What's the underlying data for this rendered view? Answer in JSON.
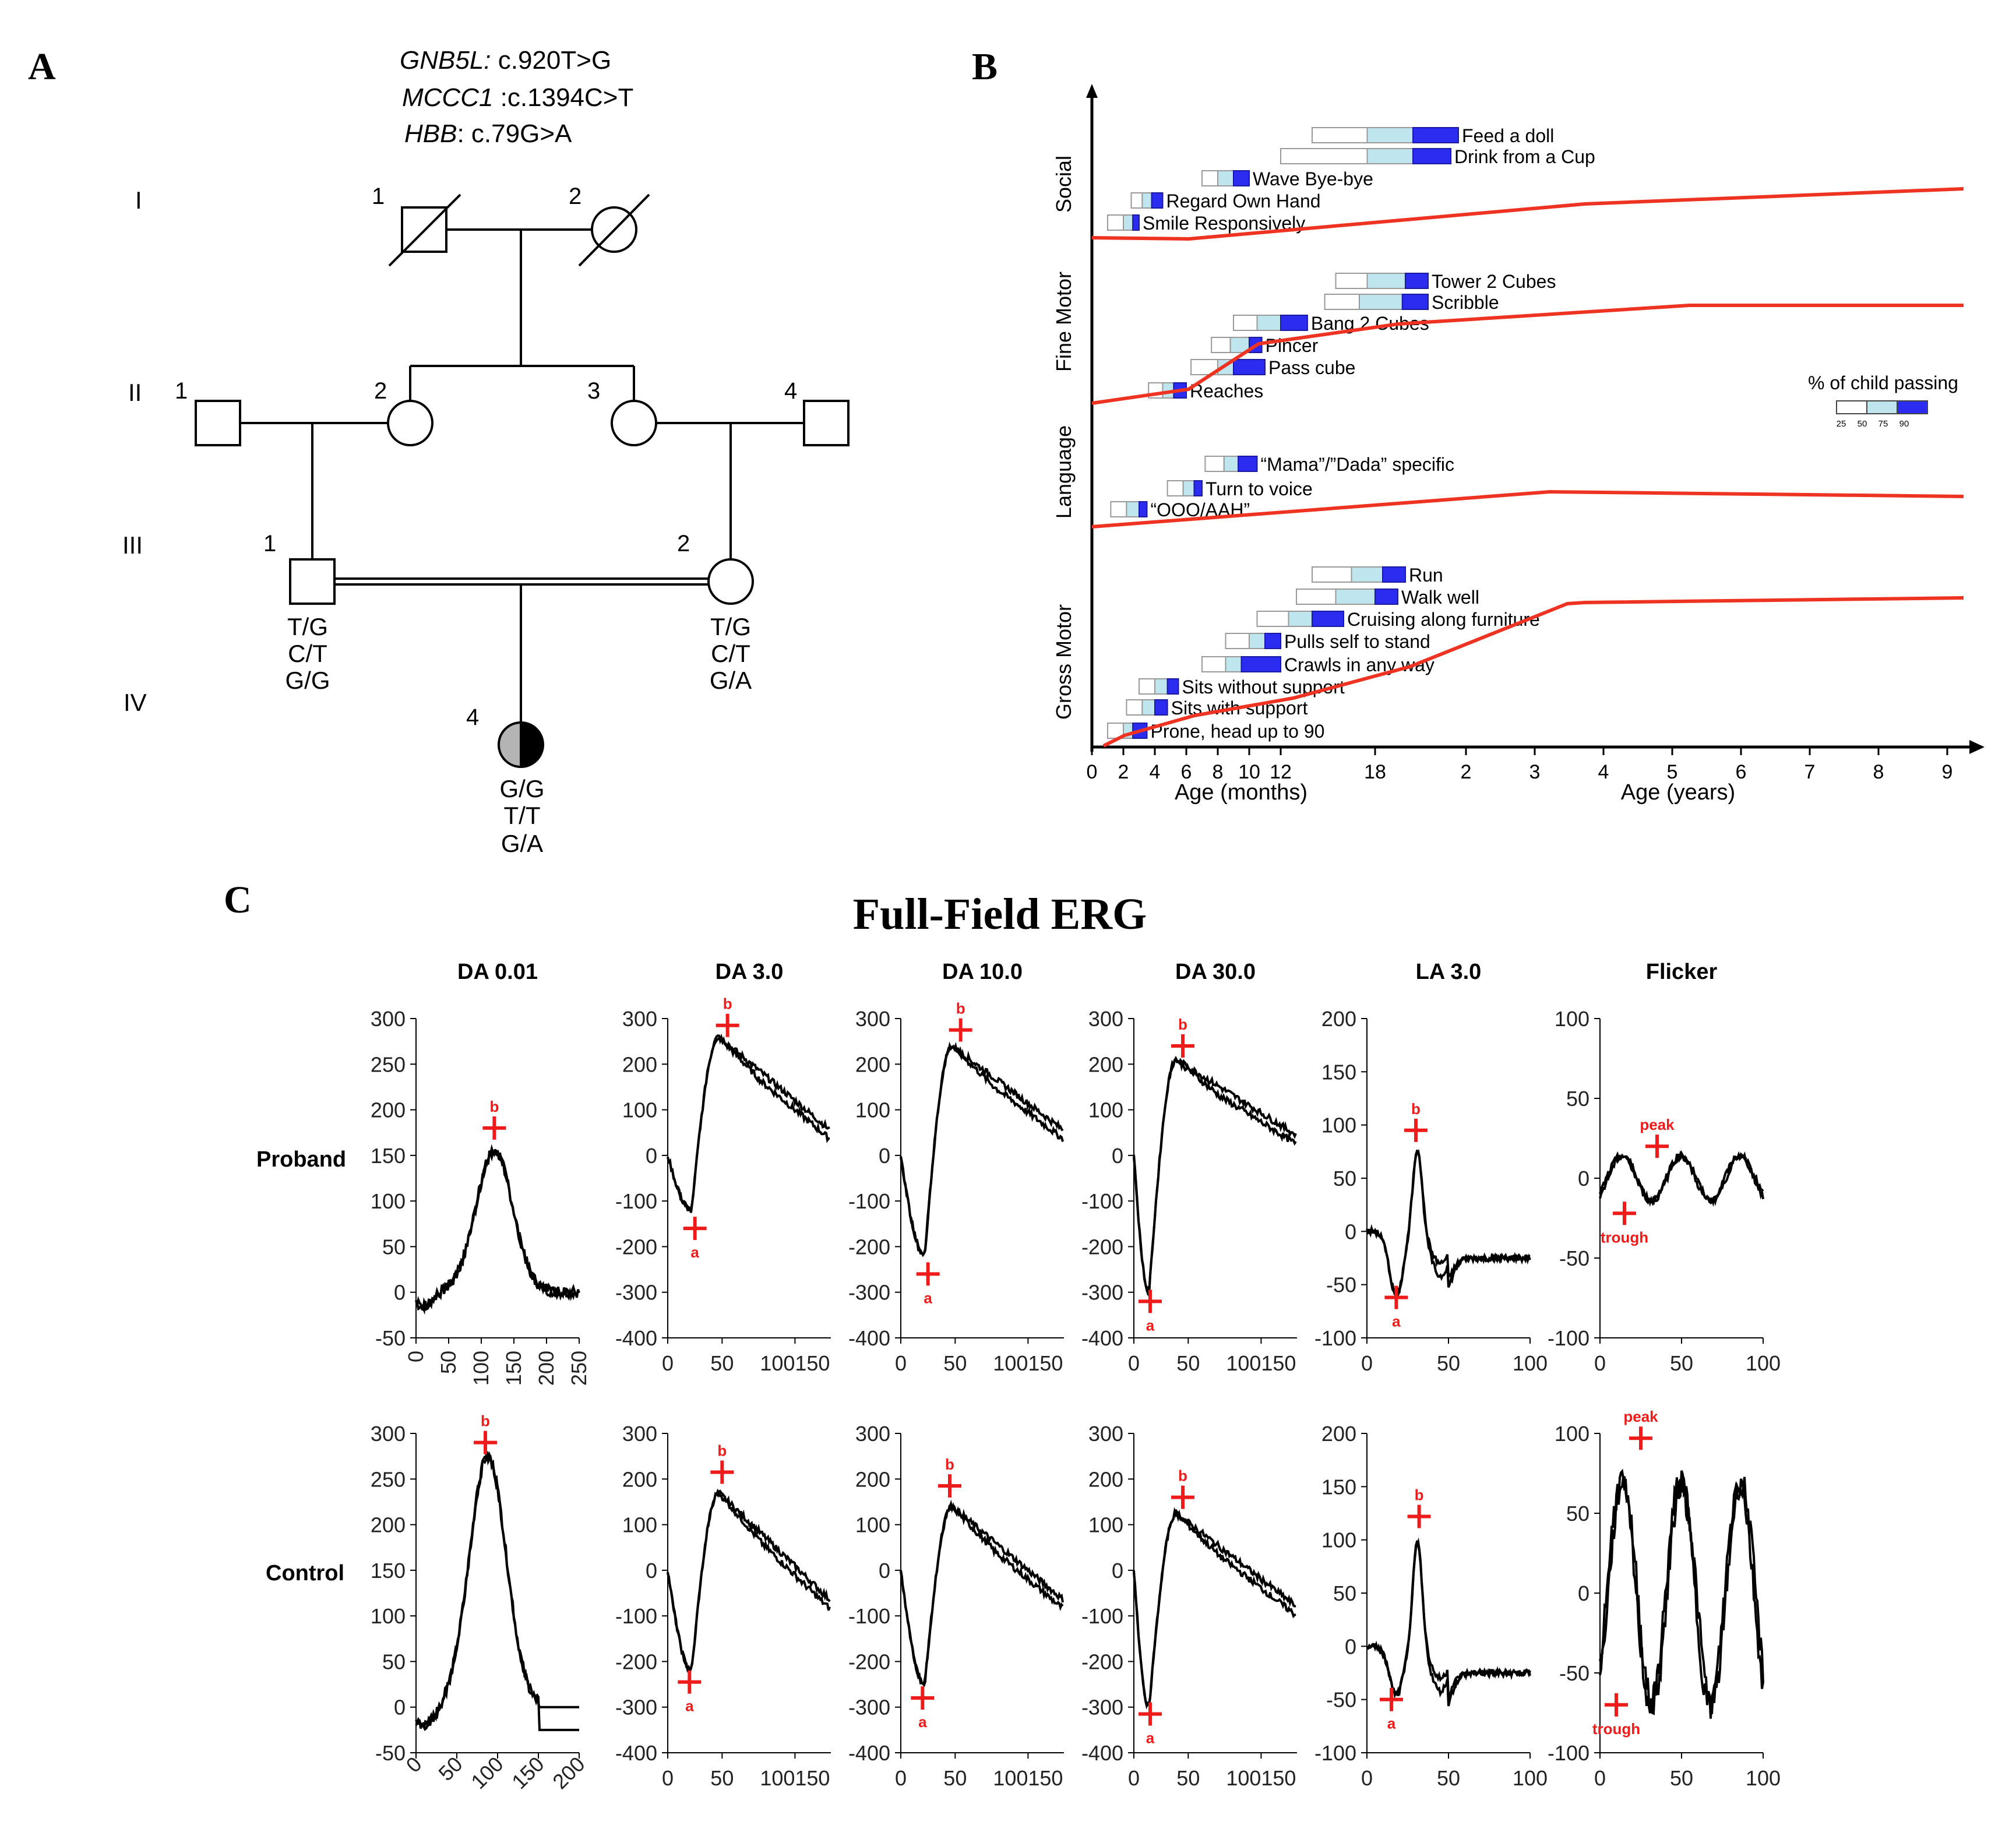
{
  "panel_labels": {
    "a": "A",
    "b": "B",
    "c": "C"
  },
  "pedigree": {
    "variants": [
      {
        "gene": "GNB5L:",
        "change": " c.920T>G"
      },
      {
        "gene": "MCCC1",
        "change": " :c.1394C>T"
      },
      {
        "gene": "HBB",
        "change": ": c.79G>A"
      }
    ],
    "generations": [
      "I",
      "II",
      "III",
      "IV"
    ],
    "individuals": [
      {
        "gen": "I",
        "num": "1",
        "sex": "male",
        "deceased": true,
        "genotype": []
      },
      {
        "gen": "I",
        "num": "2",
        "sex": "female",
        "deceased": true,
        "genotype": []
      },
      {
        "gen": "II",
        "num": "1",
        "sex": "male",
        "deceased": false,
        "genotype": []
      },
      {
        "gen": "II",
        "num": "2",
        "sex": "female",
        "deceased": false,
        "genotype": []
      },
      {
        "gen": "II",
        "num": "3",
        "sex": "female",
        "deceased": false,
        "genotype": []
      },
      {
        "gen": "II",
        "num": "4",
        "sex": "male",
        "deceased": false,
        "genotype": []
      },
      {
        "gen": "III",
        "num": "1",
        "sex": "male",
        "deceased": false,
        "genotype": [
          "T/G",
          "C/T",
          "G/G"
        ]
      },
      {
        "gen": "III",
        "num": "2",
        "sex": "female",
        "deceased": false,
        "genotype": [
          "T/G",
          "C/T",
          "G/A"
        ]
      },
      {
        "gen": "IV",
        "num": "4",
        "sex": "female",
        "deceased": false,
        "affected": true,
        "genotype": [
          "G/G",
          "T/T",
          "G/A"
        ]
      }
    ]
  },
  "development": {
    "x_months_label": "Age (months)",
    "x_years_label": "Age (years)",
    "month_ticks": [
      "0",
      "2",
      "4",
      "6",
      "8",
      "10",
      "12",
      "18"
    ],
    "year_ticks": [
      "2",
      "3",
      "4",
      "5",
      "6",
      "7",
      "8",
      "9"
    ],
    "legend_title": "% of child passing",
    "legend_ticks": [
      "25",
      "50",
      "75",
      "90"
    ],
    "colors": {
      "p25": "#ffffff",
      "p50": "#ffffff",
      "p75": "#bfe6ee",
      "p90": "#2c2cf0",
      "curve": "#ee3322"
    },
    "domains": [
      {
        "name": "Social",
        "milestones": [
          {
            "label": "Feed a doll",
            "ages_months": [
              14,
              17.5,
              20.5,
              23.5
            ]
          },
          {
            "label": "Drink from a Cup",
            "ages_months": [
              12,
              17.5,
              20.5,
              23
            ]
          },
          {
            "label": "Wave Bye-bye",
            "ages_months": [
              7,
              8,
              9,
              10
            ]
          },
          {
            "label": "Regard Own Hand",
            "ages_months": [
              2.5,
              3.2,
              3.8,
              4.5
            ]
          },
          {
            "label": "Smile Responsively",
            "ages_months": [
              1,
              2,
              2.6,
              3
            ]
          }
        ]
      },
      {
        "name": "Fine Motor",
        "milestones": [
          {
            "label": "Tower 2 Cubes",
            "ages_months": [
              15.5,
              17.5,
              20,
              21.5
            ]
          },
          {
            "label": "Scribble",
            "ages_months": [
              14.8,
              17,
              19.8,
              21.5
            ]
          },
          {
            "label": "Bang 2 Cubes",
            "ages_months": [
              9,
              10.5,
              12,
              13.7
            ]
          },
          {
            "label": "Pincer",
            "ages_months": [
              7.6,
              8.8,
              10,
              10.8
            ]
          },
          {
            "label": "Pass cube",
            "ages_months": [
              6.3,
              8,
              9,
              11
            ]
          },
          {
            "label": "Reaches",
            "ages_months": [
              3.6,
              4.5,
              5.2,
              6
            ]
          }
        ]
      },
      {
        "name": "Language",
        "milestones": [
          {
            "label": "“Mama”/”Dada” specific",
            "ages_months": [
              7.2,
              8.4,
              9.3,
              10.5
            ]
          },
          {
            "label": "Turn to voice",
            "ages_months": [
              4.8,
              5.8,
              6.5,
              7
            ]
          },
          {
            "label": "“OOO/AAH”",
            "ages_months": [
              1.2,
              2.2,
              3,
              3.5
            ]
          }
        ]
      },
      {
        "name": "Gross Motor",
        "milestones": [
          {
            "label": "Run",
            "ages_months": [
              14,
              16.5,
              18.5,
              20
            ]
          },
          {
            "label": "Walk well",
            "ages_months": [
              13,
              15.5,
              18,
              19.5
            ]
          },
          {
            "label": "Cruising along furniture",
            "ages_months": [
              10.5,
              12.5,
              14,
              16
            ]
          },
          {
            "label": "Pulls self to stand",
            "ages_months": [
              8.5,
              10,
              11,
              12
            ]
          },
          {
            "label": "Crawls in any way",
            "ages_months": [
              7,
              8.5,
              9.5,
              12
            ]
          },
          {
            "label": "Sits without support",
            "ages_months": [
              3,
              4,
              4.8,
              5.5
            ]
          },
          {
            "label": "Sits with support",
            "ages_months": [
              2.2,
              3.2,
              4,
              4.8
            ]
          },
          {
            "label": "Prone, head up to 90",
            "ages_months": [
              1,
              2,
              2.6,
              3.5
            ]
          }
        ]
      }
    ]
  },
  "erg": {
    "title": "Full-Field ERG",
    "row_labels": [
      "Proband",
      "Control"
    ],
    "plots": [
      {
        "name": "DA 0.01",
        "ylim": [
          -50,
          300
        ],
        "yticks": [
          "300",
          "250",
          "200",
          "150",
          "100",
          "50",
          "0",
          "-50"
        ],
        "xticks": {
          "proband": [
            "0",
            "50",
            "100",
            "150",
            "200",
            "250"
          ],
          "control": [
            "0",
            "50",
            "100",
            "150",
            "200"
          ]
        },
        "xmax": {
          "proband": 250,
          "control": 200
        },
        "proband": {
          "markers": [
            {
              "label": "b",
              "x": 120,
              "y": 180
            }
          ]
        },
        "control": {
          "markers": [
            {
              "label": "b",
              "x": 85,
              "y": 290
            }
          ]
        }
      },
      {
        "name": "DA 3.0",
        "ylim": [
          -400,
          300
        ],
        "yticks": [
          "300",
          "200",
          "100",
          "0",
          "-100",
          "-200",
          "-300",
          "-400"
        ],
        "xticks": {
          "proband": [
            "0",
            "50",
            "100150"
          ],
          "control": [
            "0",
            "50",
            "100150"
          ]
        },
        "xmax": {
          "proband": 150,
          "control": 150
        },
        "proband": {
          "markers": [
            {
              "label": "b",
              "x": 55,
              "y": 285
            },
            {
              "label": "a",
              "x": 25,
              "y": -160
            }
          ]
        },
        "control": {
          "markers": [
            {
              "label": "b",
              "x": 50,
              "y": 215
            },
            {
              "label": "a",
              "x": 20,
              "y": -245
            }
          ]
        }
      },
      {
        "name": "DA 10.0",
        "ylim": [
          -400,
          300
        ],
        "yticks": [
          "300",
          "200",
          "100",
          "0",
          "-100",
          "-200",
          "-300",
          "-400"
        ],
        "xticks": {
          "proband": [
            "0",
            "50",
            "100150"
          ],
          "control": [
            "0",
            "50",
            "100150"
          ]
        },
        "xmax": {
          "proband": 150,
          "control": 150
        },
        "proband": {
          "markers": [
            {
              "label": "b",
              "x": 55,
              "y": 275
            },
            {
              "label": "a",
              "x": 25,
              "y": -260
            }
          ]
        },
        "control": {
          "markers": [
            {
              "label": "b",
              "x": 45,
              "y": 185
            },
            {
              "label": "a",
              "x": 20,
              "y": -280
            }
          ]
        }
      },
      {
        "name": "DA 30.0",
        "ylim": [
          -400,
          300
        ],
        "yticks": [
          "300",
          "200",
          "100",
          "0",
          "-100",
          "-200",
          "-300",
          "-400"
        ],
        "xticks": {
          "proband": [
            "0",
            "50",
            "100150"
          ],
          "control": [
            "0",
            "50",
            "100150"
          ]
        },
        "xmax": {
          "proband": 150,
          "control": 150
        },
        "proband": {
          "markers": [
            {
              "label": "b",
              "x": 45,
              "y": 240
            },
            {
              "label": "a",
              "x": 15,
              "y": -320
            }
          ]
        },
        "control": {
          "markers": [
            {
              "label": "b",
              "x": 45,
              "y": 160
            },
            {
              "label": "a",
              "x": 15,
              "y": -315
            }
          ]
        }
      },
      {
        "name": "LA 3.0",
        "ylim": [
          -100,
          200
        ],
        "yticks": [
          "200",
          "150",
          "100",
          "50",
          "0",
          "-50",
          "-100"
        ],
        "xticks": {
          "proband": [
            "0",
            "50",
            "100"
          ],
          "control": [
            "0",
            "50",
            "100"
          ]
        },
        "xmax": {
          "proband": 100,
          "control": 100
        },
        "proband": {
          "markers": [
            {
              "label": "b",
              "x": 30,
              "y": 95
            },
            {
              "label": "a",
              "x": 18,
              "y": -62
            }
          ]
        },
        "control": {
          "markers": [
            {
              "label": "b",
              "x": 32,
              "y": 122
            },
            {
              "label": "a",
              "x": 15,
              "y": -50
            }
          ]
        }
      },
      {
        "name": "Flicker",
        "ylim": [
          -100,
          100
        ],
        "yticks": [
          "100",
          "50",
          "0",
          "-50",
          "-100"
        ],
        "xticks": {
          "proband": [
            "0",
            "50",
            "100"
          ],
          "control": [
            "0",
            "50",
            "100"
          ]
        },
        "xmax": {
          "proband": 100,
          "control": 100
        },
        "proband": {
          "markers": [
            {
              "label": "peak",
              "x": 35,
              "y": 20
            },
            {
              "label": "trough",
              "x": 15,
              "y": -22
            }
          ]
        },
        "control": {
          "markers": [
            {
              "label": "peak",
              "x": 25,
              "y": 97
            },
            {
              "label": "trough",
              "x": 10,
              "y": -70
            }
          ]
        }
      }
    ]
  }
}
